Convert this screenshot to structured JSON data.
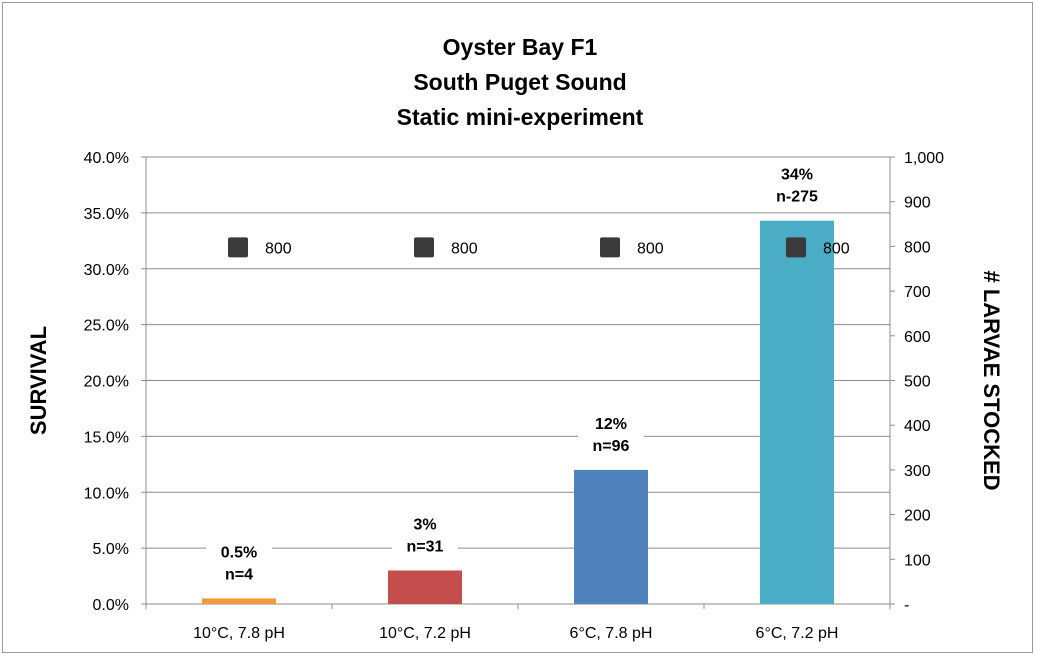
{
  "chart_data": {
    "type": "bar",
    "title_lines": [
      "Oyster Bay  F1",
      "South Puget Sound",
      "Static mini-experiment"
    ],
    "categories": [
      "10°C, 7.8 pH",
      "10°C, 7.2 pH",
      "6°C, 7.8 pH",
      "6°C, 7.2 pH"
    ],
    "series": [
      {
        "name": "",
        "type": "bar",
        "axis": "left",
        "values": [
          0.5,
          3.0,
          12.0,
          34.3
        ],
        "colors": [
          "#f29b3d",
          "#c44d4d",
          "#4f81bd",
          "#4bacc6"
        ],
        "label_lines": [
          [
            "0.5%",
            "n=4"
          ],
          [
            "3%",
            "n=31"
          ],
          [
            "12%",
            "n=96"
          ],
          [
            "34%",
            "n-275"
          ]
        ]
      },
      {
        "name": "",
        "type": "scatter",
        "axis": "right",
        "values": [
          800,
          800,
          800,
          800
        ],
        "color": "#3a3a3a",
        "labels": [
          "800",
          "800",
          "800",
          "800"
        ]
      }
    ],
    "ylabel": "SURVIVAL",
    "y2label": "# LARVAE STOCKED",
    "ylim": [
      0,
      40
    ],
    "y2lim": [
      0,
      1000
    ],
    "yticks": [
      "0.0%",
      "5.0%",
      "10.0%",
      "15.0%",
      "20.0%",
      "25.0%",
      "30.0%",
      "35.0%",
      "40.0%"
    ],
    "y2ticks": [
      "-",
      "100",
      "200",
      "300",
      "400",
      "500",
      "600",
      "700",
      "800",
      "900",
      "1,000"
    ],
    "grid": true,
    "legend": "none"
  }
}
